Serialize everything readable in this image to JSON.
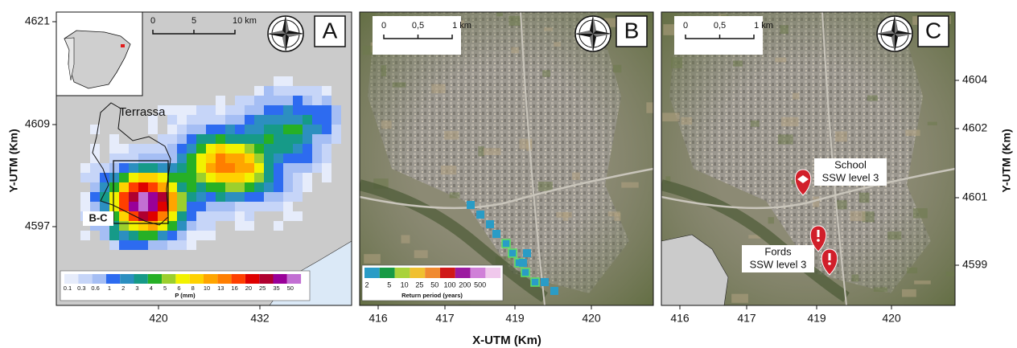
{
  "y_axis_label": "Y-UTM (Km)",
  "x_axis_label": "X-UTM (Km)",
  "y2_axis_label": "Y-UTM (Km)",
  "panel_a": {
    "letter": "A",
    "scale": [
      "0",
      "5",
      "10 km"
    ],
    "place": "Terrassa",
    "inset_label": "B-C",
    "legend": {
      "labels": [
        "0.1",
        "0.3",
        "0.6",
        "1",
        "2",
        "3",
        "4",
        "5",
        "6",
        "8",
        "10",
        "13",
        "16",
        "20",
        "25",
        "35",
        "50"
      ],
      "title": "P (mm)"
    },
    "x_ticks": [
      "420",
      "432"
    ],
    "y_ticks": [
      "4621",
      "4609",
      "4597"
    ]
  },
  "panel_b": {
    "letter": "B",
    "scale": [
      "0",
      "0,5",
      "1 km"
    ],
    "legend": {
      "labels": [
        "2",
        "5",
        "10",
        "25",
        "50",
        "100",
        "200",
        "500"
      ],
      "title": "Return period (years)"
    },
    "x_ticks": [
      "416",
      "417",
      "419",
      "420"
    ]
  },
  "panel_c": {
    "letter": "C",
    "scale": [
      "0",
      "0,5",
      "1 km"
    ],
    "markers": [
      {
        "label": "School",
        "level": "SSW level 3"
      },
      {
        "label": "Fords",
        "level": "SSW level 3"
      }
    ],
    "x_ticks": [
      "416",
      "417",
      "419",
      "420"
    ],
    "y_ticks": [
      "4604",
      "4602",
      "4601",
      "4599"
    ]
  }
}
